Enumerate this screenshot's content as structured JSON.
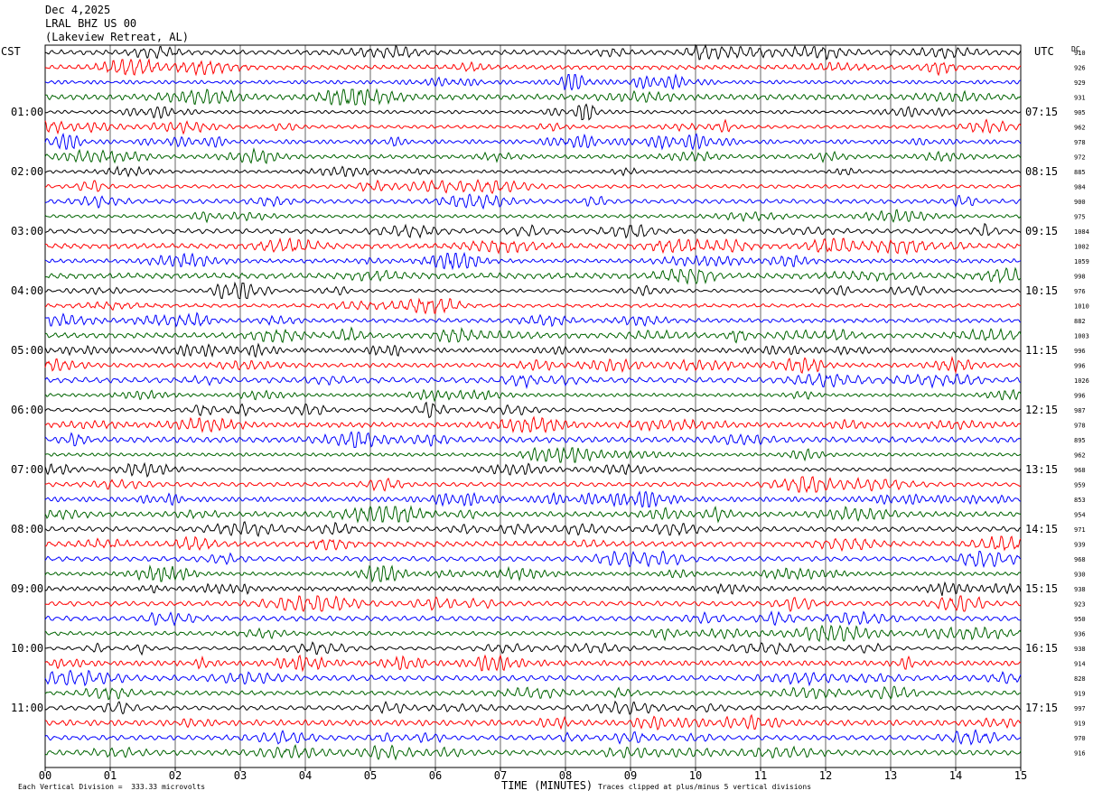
{
  "header": {
    "date": "Dec 4,2025",
    "station": "LRAL BHZ US 00",
    "location": "(Lakeview Retreat, AL)"
  },
  "left_zone": "CST",
  "right_zone": "UTC",
  "dc_label": "DC",
  "footer": {
    "division_note": "Each Vertical Division =  333.33 microvolts",
    "xlabel": "TIME (MINUTES)",
    "clip_note": "Traces clipped at plus/minus 5 vertical divisions"
  },
  "chart_data": {
    "type": "line",
    "title": "",
    "xlabel": "TIME (MINUTES)",
    "ylabel": "",
    "xlim": [
      0,
      15
    ],
    "x_ticks": [
      "00",
      "01",
      "02",
      "03",
      "04",
      "05",
      "06",
      "07",
      "08",
      "09",
      "10",
      "11",
      "12",
      "13",
      "14",
      "15"
    ],
    "trace_count": 48,
    "minutes_per_trace": 15,
    "colors": [
      "#000000",
      "#ff0000",
      "#0000ff",
      "#006400"
    ],
    "left_hour_labels": [
      "01:00",
      "02:00",
      "03:00",
      "04:00",
      "05:00",
      "06:00",
      "07:00",
      "08:00",
      "09:00",
      "10:00",
      "11:00"
    ],
    "right_hour_labels": [
      "07:15",
      "08:15",
      "09:15",
      "10:15",
      "11:15",
      "12:15",
      "13:15",
      "14:15",
      "15:15",
      "16:15",
      "17:15"
    ],
    "dc_offsets": [
      "910",
      "926",
      "929",
      "931",
      "905",
      "962",
      "978",
      "972",
      "885",
      "984",
      "900",
      "975",
      "1084",
      "1002",
      "1059",
      "998",
      "976",
      "1010",
      "882",
      "1003",
      "996",
      "996",
      "1026",
      "996",
      "987",
      "978",
      "895",
      "962",
      "968",
      "959",
      "853",
      "954",
      "971",
      "939",
      "968",
      "930",
      "938",
      "923",
      "950",
      "936",
      "938",
      "914",
      "828",
      "919",
      "997",
      "919",
      "970",
      "916"
    ],
    "vertical_division_uv": 333.33,
    "clip_divisions": 5
  }
}
